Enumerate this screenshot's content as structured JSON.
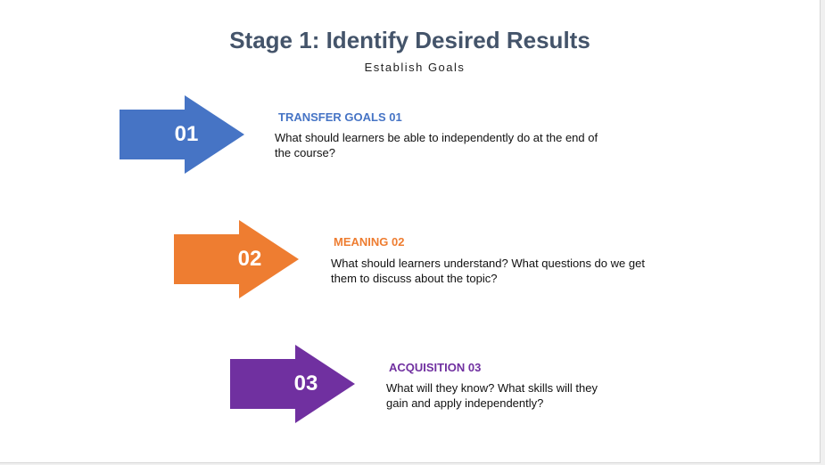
{
  "title": "Stage 1: Identify Desired Results",
  "subtitle": "Establish Goals",
  "stages": [
    {
      "number": "01",
      "heading": "TRANSFER GOALS 01",
      "description": "What should learners be able to independently do at the end of the course?",
      "color": "#4674c5"
    },
    {
      "number": "02",
      "heading": "MEANING 02",
      "description": "What should learners understand? What questions do we get them to discuss about the topic?",
      "color": "#ee7d31"
    },
    {
      "number": "03",
      "heading": "ACQUISITION 03",
      "description": "What will they know? What skills will they gain and apply independently?",
      "color": "#7030a0"
    }
  ]
}
